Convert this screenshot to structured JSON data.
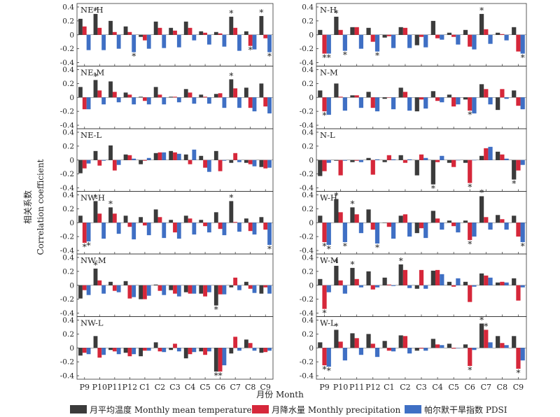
{
  "figure": {
    "ylabel_cn": "相关系数",
    "ylabel_en": "Correlation coefficient",
    "xlabel": "月份 Month",
    "legend": [
      {
        "label": "月平均温度 Monthly mean temperature",
        "color": "#3b3b3b"
      },
      {
        "label": "月降水量 Monthly precipitation",
        "color": "#d6273a"
      },
      {
        "label": "帕尔默干旱指数 PDSI",
        "color": "#3f6fc4"
      }
    ],
    "colors": {
      "temp": "#3b3b3b",
      "prec": "#d6273a",
      "pdsi": "#3f6fc4"
    }
  },
  "chart_data": {
    "type": "bar",
    "categories": [
      "P9",
      "P10",
      "P11",
      "P12",
      "C1",
      "C2",
      "C3",
      "C4",
      "C5",
      "C6",
      "C7",
      "C8",
      "C9"
    ],
    "yticks": [
      -0.4,
      -0.2,
      0,
      0.2,
      0.4
    ],
    "ylim": [
      -0.45,
      0.45
    ],
    "panels": [
      {
        "label": "NE-H",
        "series": [
          [
            0.23,
            0.3,
            0.2,
            0.12,
            -0.03,
            0.19,
            0.1,
            0.19,
            0.05,
            0.04,
            0.26,
            0.05,
            0.27
          ],
          [
            0.12,
            0.1,
            0.04,
            0.04,
            -0.08,
            0.1,
            0.06,
            0.1,
            0.03,
            0.02,
            0.1,
            -0.16,
            -0.05
          ],
          [
            -0.22,
            -0.22,
            -0.2,
            -0.25,
            -0.2,
            -0.19,
            -0.18,
            -0.08,
            -0.14,
            -0.17,
            -0.23,
            -0.21,
            -0.25
          ]
        ],
        "stars": [
          [
            1,
            0
          ],
          [
            3,
            2
          ],
          [
            10,
            0
          ],
          [
            11,
            1
          ],
          [
            12,
            0
          ],
          [
            12,
            2
          ]
        ]
      },
      {
        "label": "NE-M",
        "series": [
          [
            0.15,
            0.25,
            0.23,
            0.07,
            0.01,
            0.15,
            0.01,
            0.12,
            0.04,
            0.05,
            0.26,
            0.14,
            0.2
          ],
          [
            -0.17,
            0.1,
            0.08,
            0.04,
            -0.05,
            0.04,
            0.01,
            0.07,
            0.01,
            0.06,
            0.13,
            -0.15,
            -0.13
          ],
          [
            -0.17,
            -0.1,
            -0.07,
            -0.1,
            -0.1,
            -0.1,
            -0.07,
            -0.09,
            -0.09,
            -0.15,
            -0.15,
            -0.2,
            -0.23
          ]
        ],
        "stars": [
          [
            1,
            0
          ],
          [
            10,
            0
          ]
        ]
      },
      {
        "label": "NE-L",
        "series": [
          [
            -0.19,
            0.13,
            0.21,
            0.08,
            -0.06,
            0.1,
            0.13,
            0.08,
            0.06,
            0.13,
            -0.04,
            -0.04,
            -0.1
          ],
          [
            -0.12,
            -0.08,
            -0.15,
            0.07,
            -0.01,
            0.11,
            0.11,
            -0.06,
            -0.11,
            -0.16,
            0.1,
            -0.06,
            -0.12
          ],
          [
            -0.05,
            -0.01,
            -0.07,
            0.02,
            0.03,
            0.11,
            0.09,
            0.15,
            -0.17,
            -0.01,
            -0.03,
            -0.09,
            -0.11
          ]
        ],
        "stars": []
      },
      {
        "label": "NW-H",
        "series": [
          [
            0.1,
            0.31,
            0.22,
            0.1,
            0.08,
            0.19,
            0.04,
            0.1,
            0.04,
            0.15,
            0.31,
            0.06,
            0.08
          ],
          [
            -0.29,
            0.13,
            0.13,
            -0.06,
            -0.04,
            0.08,
            -0.14,
            0.06,
            -0.05,
            -0.09,
            0.01,
            -0.12,
            -0.1
          ],
          [
            -0.27,
            -0.23,
            -0.16,
            -0.24,
            -0.18,
            -0.22,
            -0.23,
            -0.17,
            -0.14,
            -0.18,
            -0.13,
            -0.17,
            -0.32
          ]
        ],
        "stars": [
          [
            0,
            1
          ],
          [
            0,
            2
          ],
          [
            1,
            0
          ],
          [
            2,
            0
          ],
          [
            10,
            0
          ],
          [
            12,
            2
          ]
        ]
      },
      {
        "label": "NW-M",
        "series": [
          [
            -0.19,
            0.24,
            0.05,
            0.06,
            -0.2,
            0.01,
            -0.07,
            -0.1,
            -0.12,
            -0.29,
            -0.03,
            0.05,
            -0.12
          ],
          [
            -0.07,
            0.07,
            -0.08,
            -0.19,
            -0.2,
            -0.08,
            -0.12,
            -0.12,
            -0.16,
            -0.13,
            0.11,
            -0.05,
            -0.03
          ],
          [
            -0.14,
            -0.12,
            -0.1,
            -0.17,
            -0.15,
            -0.14,
            -0.16,
            -0.12,
            -0.1,
            -0.13,
            -0.07,
            -0.11,
            -0.12
          ]
        ],
        "stars": [
          [
            1,
            0
          ],
          [
            9,
            0
          ]
        ]
      },
      {
        "label": "NW-L",
        "series": [
          [
            -0.11,
            0.17,
            -0.03,
            -0.07,
            -0.12,
            0.08,
            -0.03,
            -0.15,
            -0.05,
            -0.34,
            -0.08,
            0.12,
            -0.07
          ],
          [
            -0.07,
            -0.14,
            -0.05,
            -0.12,
            -0.04,
            -0.05,
            0.06,
            -0.09,
            -0.1,
            -0.34,
            0.16,
            0.07,
            -0.06
          ],
          [
            -0.09,
            -0.1,
            -0.09,
            -0.09,
            -0.04,
            -0.06,
            -0.05,
            -0.06,
            -0.05,
            -0.25,
            -0.04,
            -0.04,
            -0.04
          ]
        ],
        "stars": [
          [
            9,
            0
          ],
          [
            9,
            1
          ]
        ]
      },
      {
        "label": "N-H",
        "series": [
          [
            0.07,
            0.26,
            0.11,
            0.1,
            -0.04,
            0.11,
            -0.15,
            0.2,
            0.03,
            0.07,
            0.3,
            0.03,
            0.11
          ],
          [
            -0.27,
            0.07,
            0.11,
            -0.1,
            -0.02,
            0.1,
            -0.03,
            -0.05,
            -0.03,
            -0.17,
            0.08,
            0.01,
            -0.24
          ],
          [
            -0.27,
            -0.23,
            -0.2,
            -0.24,
            -0.19,
            -0.19,
            -0.18,
            -0.07,
            -0.14,
            -0.21,
            -0.13,
            -0.08,
            -0.27
          ]
        ],
        "stars": [
          [
            0,
            1
          ],
          [
            0,
            2
          ],
          [
            1,
            0
          ],
          [
            1,
            2
          ],
          [
            3,
            2
          ],
          [
            10,
            0
          ],
          [
            12,
            2
          ]
        ]
      },
      {
        "label": "N-M",
        "series": [
          [
            0.1,
            0.2,
            0.03,
            0.08,
            -0.02,
            0.14,
            -0.2,
            0.09,
            0.04,
            -0.03,
            0.19,
            -0.18,
            0.1
          ],
          [
            -0.2,
            0.01,
            0.03,
            -0.15,
            0.0,
            0.08,
            -0.03,
            -0.05,
            -0.13,
            -0.19,
            0.12,
            0.12,
            -0.12
          ],
          [
            -0.25,
            -0.19,
            -0.15,
            -0.2,
            -0.17,
            -0.19,
            -0.16,
            -0.07,
            -0.1,
            -0.23,
            -0.1,
            -0.02,
            -0.17
          ]
        ],
        "stars": [
          [
            0,
            1
          ],
          [
            9,
            1
          ]
        ]
      },
      {
        "label": "N-L",
        "series": [
          [
            -0.23,
            -0.01,
            -0.03,
            0.03,
            -0.03,
            0.07,
            -0.22,
            -0.35,
            -0.04,
            -0.04,
            0.06,
            0.12,
            -0.28
          ],
          [
            -0.16,
            -0.22,
            -0.01,
            -0.21,
            0.07,
            -0.04,
            0.08,
            -0.03,
            -0.1,
            -0.33,
            0.17,
            0.08,
            -0.15
          ],
          [
            -0.04,
            -0.01,
            -0.03,
            0.01,
            0.01,
            0.01,
            0.03,
            0.06,
            0.0,
            0.0,
            0.19,
            0.02,
            -0.07
          ]
        ],
        "stars": [
          [
            7,
            0
          ],
          [
            9,
            1
          ],
          [
            12,
            0
          ]
        ]
      },
      {
        "label": "W-H",
        "series": [
          [
            0.1,
            0.34,
            0.22,
            0.19,
            0.0,
            0.1,
            -0.15,
            0.17,
            0.03,
            0.03,
            0.38,
            0.11,
            0.1
          ],
          [
            -0.28,
            0.15,
            0.12,
            -0.1,
            -0.06,
            0.12,
            -0.08,
            0.06,
            -0.05,
            -0.25,
            0.08,
            0.05,
            -0.2
          ],
          [
            -0.32,
            -0.28,
            -0.15,
            -0.3,
            -0.23,
            -0.2,
            -0.22,
            -0.1,
            -0.14,
            -0.2,
            -0.1,
            -0.1,
            -0.28
          ]
        ],
        "stars": [
          [
            0,
            1
          ],
          [
            0,
            2
          ],
          [
            1,
            0
          ],
          [
            1,
            2
          ],
          [
            2,
            0
          ],
          [
            3,
            2
          ],
          [
            9,
            1
          ],
          [
            10,
            0
          ],
          [
            12,
            2
          ]
        ]
      },
      {
        "label": "W-M",
        "series": [
          [
            0.09,
            0.28,
            0.25,
            0.2,
            0.11,
            0.3,
            -0.05,
            0.21,
            0.05,
            0.05,
            0.17,
            0.04,
            0.1
          ],
          [
            -0.34,
            0.07,
            0.09,
            -0.06,
            0.01,
            0.22,
            0.22,
            0.22,
            -0.02,
            -0.24,
            0.14,
            0.05,
            -0.22
          ],
          [
            -0.1,
            -0.12,
            -0.03,
            -0.03,
            -0.01,
            -0.04,
            -0.05,
            0.16,
            0.1,
            -0.02,
            0.11,
            0.04,
            -0.03
          ]
        ],
        "stars": [
          [
            0,
            1
          ],
          [
            1,
            0
          ],
          [
            2,
            0
          ],
          [
            5,
            0
          ]
        ]
      },
      {
        "label": "W-L",
        "series": [
          [
            0.08,
            0.26,
            0.21,
            0.2,
            0.1,
            0.18,
            -0.04,
            0.13,
            0.06,
            0.05,
            0.35,
            0.17,
            0.17
          ],
          [
            -0.25,
            0.09,
            0.14,
            0.06,
            -0.04,
            0.17,
            -0.01,
            0.05,
            -0.01,
            -0.26,
            0.26,
            0.07,
            -0.3
          ],
          [
            -0.27,
            -0.18,
            -0.1,
            -0.13,
            -0.05,
            -0.08,
            -0.04,
            0.04,
            0.0,
            -0.03,
            0.08,
            0.04,
            -0.18
          ]
        ],
        "stars": [
          [
            0,
            1
          ],
          [
            0,
            2
          ],
          [
            1,
            0
          ],
          [
            9,
            1
          ],
          [
            10,
            0
          ],
          [
            10,
            1
          ],
          [
            12,
            1
          ]
        ]
      }
    ]
  }
}
